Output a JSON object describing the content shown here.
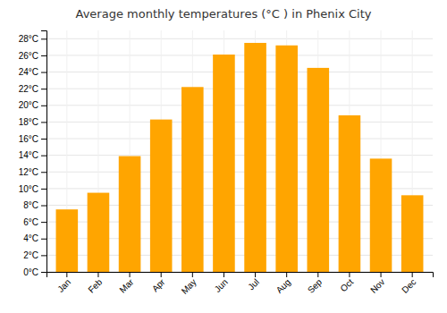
{
  "chart_data": {
    "type": "bar",
    "title": "Average monthly temperatures (°C ) in Phenix City",
    "categories": [
      "Jan",
      "Feb",
      "Mar",
      "Apr",
      "May",
      "Jun",
      "Jul",
      "Aug",
      "Sep",
      "Oct",
      "Nov",
      "Dec"
    ],
    "values": [
      7.5,
      9.5,
      13.9,
      18.3,
      22.2,
      26.1,
      27.5,
      27.2,
      24.5,
      18.8,
      13.6,
      9.2
    ],
    "color": "#FFA500",
    "ylim": [
      0,
      29
    ],
    "yticks": [
      {
        "value": 0,
        "label": "0°C"
      },
      {
        "value": 2,
        "label": "2°C"
      },
      {
        "value": 4,
        "label": "4°C"
      },
      {
        "value": 6,
        "label": "6°C"
      },
      {
        "value": 8,
        "label": "8°C"
      },
      {
        "value": 10,
        "label": "10°C"
      },
      {
        "value": 12,
        "label": "12°C"
      },
      {
        "value": 14,
        "label": "14°C"
      },
      {
        "value": 16,
        "label": "16°C"
      },
      {
        "value": 18,
        "label": "18°C"
      },
      {
        "value": 20,
        "label": "20°C"
      },
      {
        "value": 22,
        "label": "22°C"
      },
      {
        "value": 24,
        "label": "24°C"
      },
      {
        "value": 26,
        "label": "26°C"
      },
      {
        "value": 28,
        "label": "28°C"
      }
    ],
    "grid": true
  }
}
